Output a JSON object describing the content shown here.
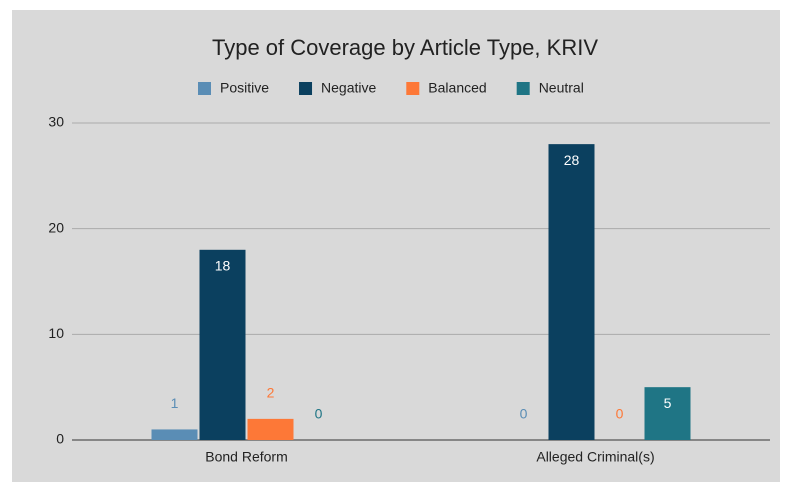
{
  "chart_data": {
    "type": "bar",
    "title": "Type of Coverage by Article Type, KRIV",
    "categories": [
      "Bond Reform",
      "Alleged Criminal(s)"
    ],
    "series": [
      {
        "name": "Positive",
        "color": "#5a8db5",
        "values": [
          1,
          0
        ]
      },
      {
        "name": "Negative",
        "color": "#0b405f",
        "values": [
          18,
          28
        ]
      },
      {
        "name": "Balanced",
        "color": "#fd7837",
        "values": [
          2,
          0
        ]
      },
      {
        "name": "Neutral",
        "color": "#1f7585",
        "values": [
          0,
          5
        ]
      }
    ],
    "ylim": [
      0,
      30
    ],
    "yticks": [
      0,
      10,
      20,
      30
    ],
    "grid": true,
    "legend": "top"
  }
}
